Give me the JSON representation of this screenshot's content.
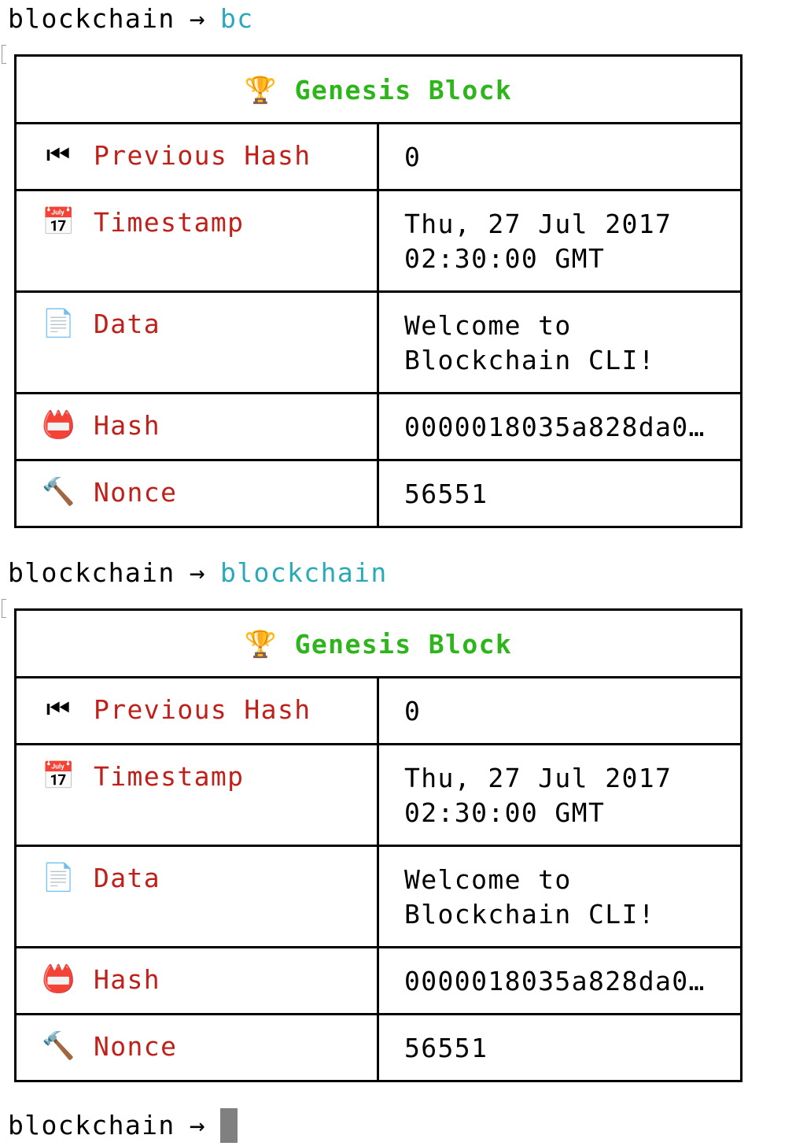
{
  "prompt_dir": "blockchain",
  "arrow": "→",
  "sessions": [
    {
      "command": "bc",
      "block": {
        "title": "Genesis Block",
        "title_icon": "trophy",
        "rows": [
          {
            "icon": "rewind-button",
            "label": "Previous Hash",
            "value": "0"
          },
          {
            "icon": "calendar",
            "label": "Timestamp",
            "value": "Thu, 27 Jul 2017\n02:30:00 GMT"
          },
          {
            "icon": "page",
            "label": "Data",
            "value": "Welcome to\nBlockchain CLI!"
          },
          {
            "icon": "name-badge",
            "label": "Hash",
            "value": "0000018035a828da0…"
          },
          {
            "icon": "hammer",
            "label": "Nonce",
            "value": "56551"
          }
        ]
      }
    },
    {
      "command": "blockchain",
      "block": {
        "title": "Genesis Block",
        "title_icon": "trophy",
        "rows": [
          {
            "icon": "rewind-button",
            "label": "Previous Hash",
            "value": "0"
          },
          {
            "icon": "calendar",
            "label": "Timestamp",
            "value": "Thu, 27 Jul 2017\n02:30:00 GMT"
          },
          {
            "icon": "page",
            "label": "Data",
            "value": "Welcome to\nBlockchain CLI!"
          },
          {
            "icon": "name-badge",
            "label": "Hash",
            "value": "0000018035a828da0…"
          },
          {
            "icon": "hammer",
            "label": "Nonce",
            "value": "56551"
          }
        ]
      }
    }
  ],
  "colors": {
    "command": "#2aaab8",
    "title": "#2db51b",
    "label": "#c0201a"
  }
}
